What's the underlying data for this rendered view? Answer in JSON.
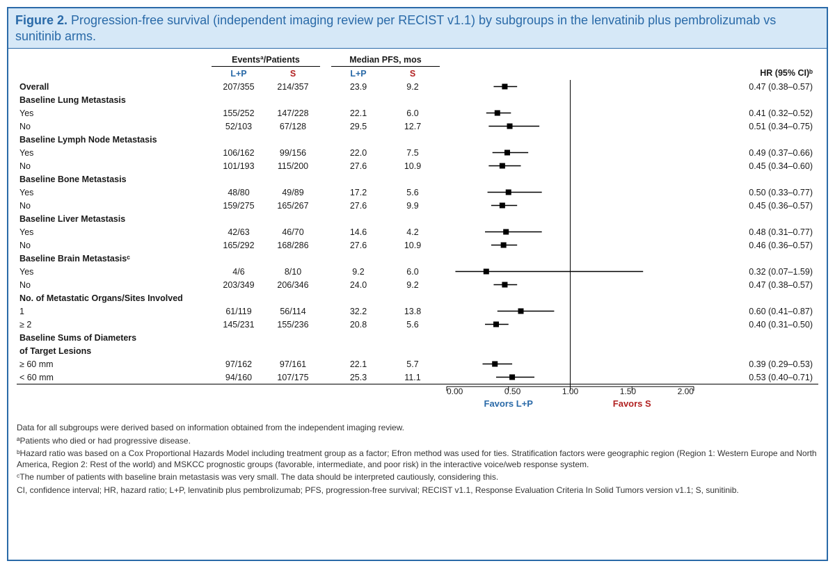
{
  "figure": {
    "label": "Figure 2.",
    "title": "Progression-free survival (independent imaging review per RECIST v1.1) by subgroups in the lenvatinib plus pembrolizumab vs sunitinib arms."
  },
  "colors": {
    "border": "#2a6aa8",
    "title_bg": "#d6e8f7",
    "lp": "#2a6aa8",
    "s": "#b22222",
    "marker": "#000000",
    "refline": "#000000"
  },
  "headers": {
    "events_patients": "Eventsª/Patients",
    "median_pfs": "Median PFS, mos",
    "lp": "L+P",
    "s": "S",
    "hr_ci": "HR (95% CI)ᵇ"
  },
  "axis": {
    "min": 0.0,
    "max": 2.0,
    "ref": 1.0,
    "ticks": [
      0.0,
      0.5,
      1.0,
      1.5,
      2.0
    ],
    "tick_labels": [
      "0.00",
      "0.50",
      "1.00",
      "1.50",
      "2.00"
    ],
    "favors_lp": "Favors L+P",
    "favors_s": "Favors S"
  },
  "rows": [
    {
      "type": "data",
      "label": "Overall",
      "lp_ev": "207/355",
      "s_ev": "214/357",
      "lp_med": "23.9",
      "s_med": "9.2",
      "hr": 0.47,
      "lo": 0.38,
      "hi": 0.57,
      "hr_text": "0.47 (0.38–0.57)"
    },
    {
      "type": "group",
      "label": "Baseline Lung Metastasis"
    },
    {
      "type": "data",
      "label": "Yes",
      "lp_ev": "155/252",
      "s_ev": "147/228",
      "lp_med": "22.1",
      "s_med": "6.0",
      "hr": 0.41,
      "lo": 0.32,
      "hi": 0.52,
      "hr_text": "0.41 (0.32–0.52)"
    },
    {
      "type": "data",
      "label": "No",
      "lp_ev": "52/103",
      "s_ev": "67/128",
      "lp_med": "29.5",
      "s_med": "12.7",
      "hr": 0.51,
      "lo": 0.34,
      "hi": 0.75,
      "hr_text": "0.51 (0.34–0.75)"
    },
    {
      "type": "group",
      "label": "Baseline Lymph Node Metastasis"
    },
    {
      "type": "data",
      "label": "Yes",
      "lp_ev": "106/162",
      "s_ev": "99/156",
      "lp_med": "22.0",
      "s_med": "7.5",
      "hr": 0.49,
      "lo": 0.37,
      "hi": 0.66,
      "hr_text": "0.49 (0.37–0.66)"
    },
    {
      "type": "data",
      "label": "No",
      "lp_ev": "101/193",
      "s_ev": "115/200",
      "lp_med": "27.6",
      "s_med": "10.9",
      "hr": 0.45,
      "lo": 0.34,
      "hi": 0.6,
      "hr_text": "0.45 (0.34–0.60)"
    },
    {
      "type": "group",
      "label": "Baseline Bone Metastasis"
    },
    {
      "type": "data",
      "label": "Yes",
      "lp_ev": "48/80",
      "s_ev": "49/89",
      "lp_med": "17.2",
      "s_med": "5.6",
      "hr": 0.5,
      "lo": 0.33,
      "hi": 0.77,
      "hr_text": "0.50 (0.33–0.77)"
    },
    {
      "type": "data",
      "label": "No",
      "lp_ev": "159/275",
      "s_ev": "165/267",
      "lp_med": "27.6",
      "s_med": "9.9",
      "hr": 0.45,
      "lo": 0.36,
      "hi": 0.57,
      "hr_text": "0.45 (0.36–0.57)"
    },
    {
      "type": "group",
      "label": "Baseline Liver Metastasis"
    },
    {
      "type": "data",
      "label": "Yes",
      "lp_ev": "42/63",
      "s_ev": "46/70",
      "lp_med": "14.6",
      "s_med": "4.2",
      "hr": 0.48,
      "lo": 0.31,
      "hi": 0.77,
      "hr_text": "0.48 (0.31–0.77)"
    },
    {
      "type": "data",
      "label": "No",
      "lp_ev": "165/292",
      "s_ev": "168/286",
      "lp_med": "27.6",
      "s_med": "10.9",
      "hr": 0.46,
      "lo": 0.36,
      "hi": 0.57,
      "hr_text": "0.46 (0.36–0.57)"
    },
    {
      "type": "group",
      "label": "Baseline Brain Metastasisᶜ"
    },
    {
      "type": "data",
      "label": "Yes",
      "lp_ev": "4/6",
      "s_ev": "8/10",
      "lp_med": "9.2",
      "s_med": "6.0",
      "hr": 0.32,
      "lo": 0.07,
      "hi": 1.59,
      "hr_text": "0.32 (0.07–1.59)"
    },
    {
      "type": "data",
      "label": "No",
      "lp_ev": "203/349",
      "s_ev": "206/346",
      "lp_med": "24.0",
      "s_med": "9.2",
      "hr": 0.47,
      "lo": 0.38,
      "hi": 0.57,
      "hr_text": "0.47 (0.38–0.57)"
    },
    {
      "type": "group",
      "label": "No. of Metastatic Organs/Sites Involved"
    },
    {
      "type": "data",
      "label": "1",
      "lp_ev": "61/119",
      "s_ev": "56/114",
      "lp_med": "32.2",
      "s_med": "13.8",
      "hr": 0.6,
      "lo": 0.41,
      "hi": 0.87,
      "hr_text": "0.60 (0.41–0.87)"
    },
    {
      "type": "data",
      "label": "≥ 2",
      "lp_ev": "145/231",
      "s_ev": "155/236",
      "lp_med": "20.8",
      "s_med": "5.6",
      "hr": 0.4,
      "lo": 0.31,
      "hi": 0.5,
      "hr_text": "0.40 (0.31–0.50)"
    },
    {
      "type": "group2",
      "label1": "Baseline Sums of Diameters",
      "label2": "of Target Lesions"
    },
    {
      "type": "data",
      "label": "≥ 60 mm",
      "lp_ev": "97/162",
      "s_ev": "97/161",
      "lp_med": "22.1",
      "s_med": "5.7",
      "hr": 0.39,
      "lo": 0.29,
      "hi": 0.53,
      "hr_text": "0.39 (0.29–0.53)"
    },
    {
      "type": "data",
      "label": "< 60 mm",
      "lp_ev": "94/160",
      "s_ev": "107/175",
      "lp_med": "25.3",
      "s_med": "11.1",
      "hr": 0.53,
      "lo": 0.4,
      "hi": 0.71,
      "hr_text": "0.53 (0.40–0.71)"
    }
  ],
  "footnotes": {
    "intro": "Data for all subgroups were derived based on information obtained from the independent imaging review.",
    "a": "ªPatients who died or had progressive disease.",
    "b": "ᵇHazard ratio was based on a Cox Proportional Hazards Model including treatment group as a factor; Efron method was used for ties. Stratification factors were geographic region (Region 1: Western Europe and North America, Region 2: Rest of the world) and MSKCC prognostic groups (favorable, intermediate, and poor risk) in the interactive voice/web response system.",
    "c": "ᶜThe number of patients with baseline brain metastasis was very small. The data should be interpreted cautiously, considering this.",
    "abbr": "CI, confidence interval; HR, hazard ratio; L+P, lenvatinib plus pembrolizumab; PFS, progression-free survival; RECIST v1.1, Response Evaluation Criteria In Solid Tumors version v1.1; S, sunitinib."
  },
  "plot_style": {
    "marker_size": 8,
    "line_width": 1.4,
    "ci_cap": 0
  }
}
